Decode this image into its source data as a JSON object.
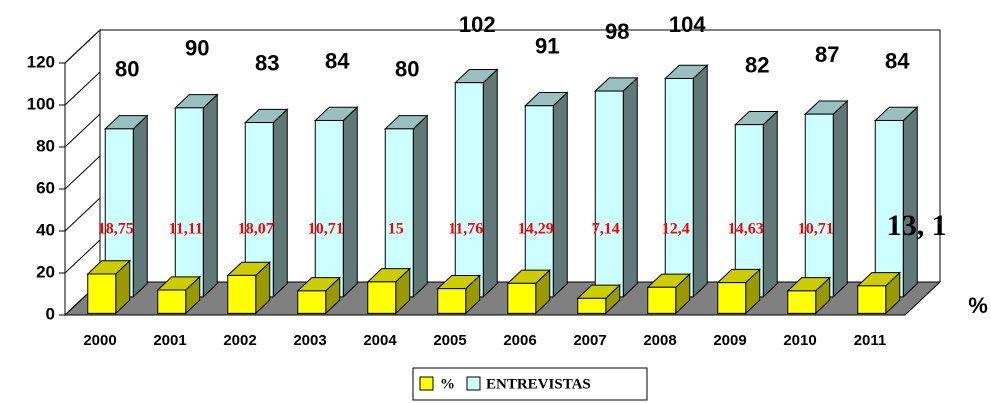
{
  "chart_data": {
    "type": "bar3d",
    "categories": [
      "2000",
      "2001",
      "2002",
      "2003",
      "2004",
      "2005",
      "2006",
      "2007",
      "2008",
      "2009",
      "2010",
      "2011"
    ],
    "series": [
      {
        "name": "%",
        "color": "#ffff00",
        "values": [
          18.75,
          11.11,
          18.07,
          10.71,
          15,
          11.76,
          14.29,
          7.14,
          12.4,
          14.63,
          10.71,
          13.1
        ],
        "value_labels": [
          "18,75",
          "11,11",
          "18,07",
          "10,71",
          "15",
          "11,76",
          "14,29",
          "7,14",
          "12,4",
          "14,63",
          "10,71",
          "13, 1"
        ]
      },
      {
        "name": "ENTREVISTAS",
        "color": "#ccffff",
        "values": [
          80,
          90,
          83,
          84,
          80,
          102,
          91,
          98,
          104,
          82,
          87,
          84
        ]
      }
    ],
    "series_axis_label": "%",
    "ylim": [
      0,
      120
    ],
    "yticks": [
      0,
      20,
      40,
      60,
      80,
      100,
      120
    ]
  }
}
